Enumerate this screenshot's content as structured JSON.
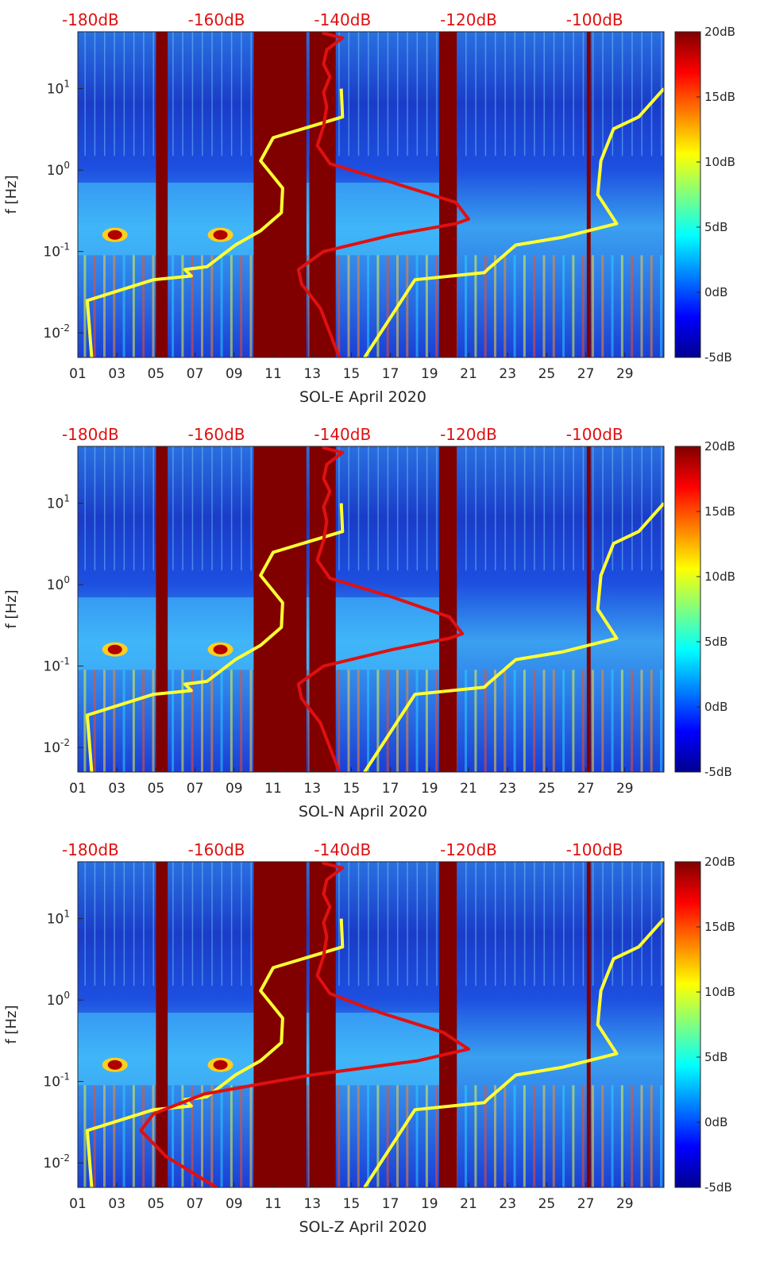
{
  "chart_data": [
    {
      "type": "heatmap",
      "title": "",
      "xlabel": "SOL-E April 2020",
      "ylabel": "f [Hz]",
      "x_unit": "day of April 2020",
      "xlim": [
        1,
        31
      ],
      "ylim": [
        0.005,
        50
      ],
      "yscale": "log",
      "x_ticks": [
        "01",
        "03",
        "05",
        "07",
        "09",
        "11",
        "13",
        "15",
        "17",
        "19",
        "21",
        "23",
        "25",
        "27",
        "29"
      ],
      "y_ticks": [
        {
          "value": 0.01,
          "base": "10",
          "exp": "-2"
        },
        {
          "value": 0.1,
          "base": "10",
          "exp": "-1"
        },
        {
          "value": 1,
          "base": "10",
          "exp": "0"
        },
        {
          "value": 10,
          "base": "10",
          "exp": "1"
        }
      ],
      "top_axis": {
        "labels": [
          "-180dB",
          "-160dB",
          "-140dB",
          "-120dB",
          "-100dB"
        ],
        "values": [
          -180,
          -160,
          -140,
          -120,
          -100
        ],
        "xlim": [
          -182,
          -89
        ]
      },
      "colorbar": {
        "range": [
          -5,
          20
        ],
        "ticks": [
          "20dB",
          "15dB",
          "10dB",
          "5dB",
          "0dB",
          "-5dB"
        ],
        "tick_values": [
          20,
          15,
          10,
          5,
          0,
          -5
        ]
      },
      "data_gaps_days": [
        [
          5.0,
          5.6
        ],
        [
          10.0,
          12.7
        ],
        [
          12.85,
          14.2
        ],
        [
          19.5,
          20.4
        ],
        [
          27.05,
          27.25
        ]
      ],
      "series": [
        {
          "name": "yellow spectral curve",
          "color": "#ffff33",
          "x_dB": [
            -179.8,
            -180.5,
            -170,
            -164,
            -165,
            -161.5,
            -157,
            -153,
            -149.7,
            -149.5,
            -153,
            -151,
            -140,
            -140.2,
            -136.5,
            -128.5,
            -117.5,
            -117,
            -112.5,
            -105,
            -96.5,
            -99.5,
            -99,
            -97,
            -93,
            -89
          ],
          "f_hz": [
            0.005,
            0.025,
            0.045,
            0.05,
            0.06,
            0.065,
            0.12,
            0.18,
            0.3,
            0.6,
            1.3,
            2.5,
            4.5,
            10.0,
            0.005,
            0.045,
            0.055,
            0.06,
            0.12,
            0.15,
            0.22,
            0.5,
            1.3,
            3.2,
            4.5,
            10.0
          ]
        },
        {
          "name": "red spectral curve",
          "color": "#e01010",
          "x_dB": [
            -140.5,
            -143.5,
            -146.5,
            -147,
            -143,
            -132,
            -122,
            -120,
            -122,
            -132,
            -142,
            -144,
            -143,
            -142.5,
            -143,
            -142,
            -143,
            -142.5,
            -140,
            -143,
            -143
          ],
          "f_hz": [
            0.005,
            0.02,
            0.04,
            0.06,
            0.1,
            0.16,
            0.22,
            0.25,
            0.4,
            0.7,
            1.2,
            2.0,
            3.5,
            6.0,
            9.0,
            14.0,
            20.0,
            30.0,
            42.0,
            48.0,
            50.0
          ]
        }
      ]
    },
    {
      "type": "heatmap",
      "title": "",
      "xlabel": "SOL-N April 2020",
      "ylabel": "f [Hz]",
      "x_unit": "day of April 2020",
      "xlim": [
        1,
        31
      ],
      "ylim": [
        0.005,
        50
      ],
      "yscale": "log",
      "x_ticks": [
        "01",
        "03",
        "05",
        "07",
        "09",
        "11",
        "13",
        "15",
        "17",
        "19",
        "21",
        "23",
        "25",
        "27",
        "29"
      ],
      "y_ticks": [
        {
          "value": 0.01,
          "base": "10",
          "exp": "-2"
        },
        {
          "value": 0.1,
          "base": "10",
          "exp": "-1"
        },
        {
          "value": 1,
          "base": "10",
          "exp": "0"
        },
        {
          "value": 10,
          "base": "10",
          "exp": "1"
        }
      ],
      "top_axis": {
        "labels": [
          "-180dB",
          "-160dB",
          "-140dB",
          "-120dB",
          "-100dB"
        ],
        "values": [
          -180,
          -160,
          -140,
          -120,
          -100
        ],
        "xlim": [
          -182,
          -89
        ]
      },
      "colorbar": {
        "range": [
          -5,
          20
        ],
        "ticks": [
          "20dB",
          "15dB",
          "10dB",
          "5dB",
          "0dB",
          "-5dB"
        ],
        "tick_values": [
          20,
          15,
          10,
          5,
          0,
          -5
        ]
      },
      "data_gaps_days": [
        [
          5.0,
          5.6
        ],
        [
          10.0,
          12.7
        ],
        [
          12.85,
          14.2
        ],
        [
          19.5,
          20.4
        ],
        [
          27.05,
          27.25
        ]
      ],
      "series": [
        {
          "name": "yellow spectral curve",
          "color": "#ffff33",
          "x_dB": [
            -179.8,
            -180.5,
            -170,
            -164,
            -165,
            -161.5,
            -157,
            -153,
            -149.7,
            -149.5,
            -153,
            -151,
            -140,
            -140.2,
            -136.5,
            -128.5,
            -117.5,
            -117,
            -112.5,
            -105,
            -96.5,
            -99.5,
            -99,
            -97,
            -93,
            -89
          ],
          "f_hz": [
            0.005,
            0.025,
            0.045,
            0.05,
            0.06,
            0.065,
            0.12,
            0.18,
            0.3,
            0.6,
            1.3,
            2.5,
            4.5,
            10.0,
            0.005,
            0.045,
            0.055,
            0.06,
            0.12,
            0.15,
            0.22,
            0.5,
            1.3,
            3.2,
            4.5,
            10.0
          ]
        },
        {
          "name": "red spectral curve",
          "color": "#e01010",
          "x_dB": [
            -140.5,
            -143.5,
            -146.5,
            -147,
            -143,
            -132,
            -123,
            -121,
            -123,
            -132,
            -142,
            -144,
            -143,
            -142.5,
            -143,
            -142,
            -143,
            -142.5,
            -140,
            -143,
            -143
          ],
          "f_hz": [
            0.005,
            0.02,
            0.04,
            0.06,
            0.1,
            0.16,
            0.22,
            0.25,
            0.4,
            0.7,
            1.2,
            2.0,
            3.5,
            6.0,
            9.0,
            14.0,
            20.0,
            30.0,
            42.0,
            48.0,
            50.0
          ]
        }
      ]
    },
    {
      "type": "heatmap",
      "title": "",
      "xlabel": "SOL-Z April 2020",
      "ylabel": "f [Hz]",
      "x_unit": "day of April 2020",
      "xlim": [
        1,
        31
      ],
      "ylim": [
        0.005,
        50
      ],
      "yscale": "log",
      "x_ticks": [
        "01",
        "03",
        "05",
        "07",
        "09",
        "11",
        "13",
        "15",
        "17",
        "19",
        "21",
        "23",
        "25",
        "27",
        "29"
      ],
      "y_ticks": [
        {
          "value": 0.01,
          "base": "10",
          "exp": "-2"
        },
        {
          "value": 0.1,
          "base": "10",
          "exp": "-1"
        },
        {
          "value": 1,
          "base": "10",
          "exp": "0"
        },
        {
          "value": 10,
          "base": "10",
          "exp": "1"
        }
      ],
      "top_axis": {
        "labels": [
          "-180dB",
          "-160dB",
          "-140dB",
          "-120dB",
          "-100dB"
        ],
        "values": [
          -180,
          -160,
          -140,
          -120,
          -100
        ],
        "xlim": [
          -182,
          -89
        ]
      },
      "colorbar": {
        "range": [
          -5,
          20
        ],
        "ticks": [
          "20dB",
          "15dB",
          "10dB",
          "5dB",
          "0dB",
          "-5dB"
        ],
        "tick_values": [
          20,
          15,
          10,
          5,
          0,
          -5
        ]
      },
      "data_gaps_days": [
        [
          5.0,
          5.6
        ],
        [
          10.0,
          12.7
        ],
        [
          12.85,
          14.2
        ],
        [
          19.5,
          20.4
        ],
        [
          27.05,
          27.25
        ]
      ],
      "series": [
        {
          "name": "yellow spectral curve",
          "color": "#ffff33",
          "x_dB": [
            -179.8,
            -180.5,
            -170,
            -164,
            -165,
            -161.5,
            -157,
            -153,
            -149.7,
            -149.5,
            -153,
            -151,
            -140,
            -140.2,
            -136.5,
            -128.5,
            -117.5,
            -117,
            -112.5,
            -105,
            -96.5,
            -99.5,
            -99,
            -97,
            -93,
            -89
          ],
          "f_hz": [
            0.005,
            0.025,
            0.045,
            0.05,
            0.06,
            0.065,
            0.12,
            0.18,
            0.3,
            0.6,
            1.3,
            2.5,
            4.5,
            10.0,
            0.005,
            0.045,
            0.055,
            0.06,
            0.12,
            0.15,
            0.22,
            0.5,
            1.3,
            3.2,
            4.5,
            10.0
          ]
        },
        {
          "name": "red spectral curve",
          "color": "#e01010",
          "x_dB": [
            -160,
            -168,
            -172,
            -170,
            -162,
            -145,
            -128,
            -120,
            -124,
            -134,
            -142,
            -144,
            -143,
            -142.5,
            -143,
            -142,
            -143,
            -142.5,
            -140,
            -143,
            -143
          ],
          "f_hz": [
            0.005,
            0.012,
            0.025,
            0.04,
            0.07,
            0.12,
            0.18,
            0.25,
            0.4,
            0.7,
            1.2,
            2.0,
            3.5,
            6.0,
            9.0,
            14.0,
            20.0,
            30.0,
            42.0,
            48.0,
            50.0
          ]
        }
      ]
    }
  ]
}
